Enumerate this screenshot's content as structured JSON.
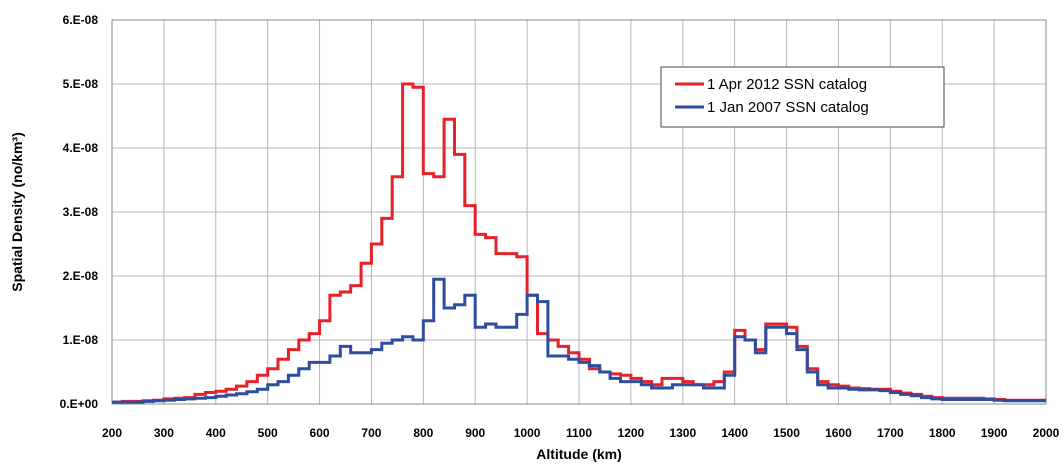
{
  "chart_data": {
    "type": "line",
    "xlabel": "Altitude (km)",
    "ylabel": "Spatial Density (no/km³)",
    "xlim": [
      200,
      2000
    ],
    "ylim": [
      0,
      6e-08
    ],
    "x_ticks": [
      "200",
      "300",
      "400",
      "500",
      "600",
      "700",
      "800",
      "900",
      "1000",
      "1100",
      "1200",
      "1300",
      "1400",
      "1500",
      "1600",
      "1700",
      "1800",
      "1900",
      "2000"
    ],
    "x_tick_values": [
      200,
      300,
      400,
      500,
      600,
      700,
      800,
      900,
      1000,
      1100,
      1200,
      1300,
      1400,
      1500,
      1600,
      1700,
      1800,
      1900,
      2000
    ],
    "y_ticks": [
      "0.E+00",
      "1.E-08",
      "2.E-08",
      "3.E-08",
      "4.E-08",
      "5.E-08",
      "6.E-08"
    ],
    "y_tick_values": [
      0,
      1e-08,
      2e-08,
      3e-08,
      4e-08,
      5e-08,
      6e-08
    ],
    "grid": true,
    "legend_position": "top-right",
    "step_edges": [
      200,
      220,
      240,
      260,
      280,
      300,
      320,
      340,
      360,
      380,
      400,
      420,
      440,
      460,
      480,
      500,
      520,
      540,
      560,
      580,
      600,
      620,
      640,
      660,
      680,
      700,
      720,
      740,
      760,
      780,
      800,
      820,
      840,
      860,
      880,
      900,
      920,
      940,
      960,
      980,
      1000,
      1020,
      1040,
      1060,
      1080,
      1100,
      1120,
      1140,
      1160,
      1180,
      1200,
      1220,
      1240,
      1260,
      1280,
      1300,
      1320,
      1340,
      1360,
      1380,
      1400,
      1420,
      1440,
      1460,
      1480,
      1500,
      1520,
      1540,
      1560,
      1580,
      1600,
      1620,
      1640,
      1660,
      1680,
      1700,
      1720,
      1740,
      1760,
      1780,
      1800,
      1820,
      1840,
      1860,
      1880,
      1900,
      1920,
      1940,
      1960,
      1980,
      2000
    ],
    "series": [
      {
        "name": "1 Apr 2012 SSN catalog",
        "color": "#e8202a",
        "values": [
          3e-10,
          4e-10,
          4e-10,
          5e-10,
          6e-10,
          8e-10,
          9e-10,
          1e-09,
          1.5e-09,
          1.8e-09,
          2e-09,
          2.3e-09,
          2.8e-09,
          3.5e-09,
          4.5e-09,
          5.5e-09,
          7e-09,
          8.5e-09,
          1e-08,
          1.1e-08,
          1.3e-08,
          1.7e-08,
          1.75e-08,
          1.85e-08,
          2.2e-08,
          2.5e-08,
          2.9e-08,
          3.55e-08,
          5e-08,
          4.95e-08,
          3.6e-08,
          3.55e-08,
          4.45e-08,
          3.9e-08,
          3.1e-08,
          2.65e-08,
          2.6e-08,
          2.35e-08,
          2.35e-08,
          2.3e-08,
          1.7e-08,
          1.1e-08,
          1e-08,
          9e-09,
          8e-09,
          7e-09,
          5.5e-09,
          5e-09,
          4.7e-09,
          4.5e-09,
          4e-09,
          3.5e-09,
          3e-09,
          4e-09,
          4e-09,
          3.5e-09,
          3e-09,
          3e-09,
          3.5e-09,
          5e-09,
          1.15e-08,
          1e-08,
          8.5e-09,
          1.25e-08,
          1.25e-08,
          1.2e-08,
          9e-09,
          5.5e-09,
          3.5e-09,
          3e-09,
          2.8e-09,
          2.5e-09,
          2.4e-09,
          2.3e-09,
          2.3e-09,
          2e-09,
          1.7e-09,
          1.5e-09,
          1.2e-09,
          1e-09,
          9e-10,
          9e-10,
          9e-10,
          9e-10,
          8e-10,
          7e-10,
          6e-10,
          6e-10,
          6e-10,
          6e-10
        ]
      },
      {
        "name": "1 Jan 2007 SSN catalog",
        "color": "#2e4d9e",
        "values": [
          3e-10,
          3e-10,
          3e-10,
          4e-10,
          5e-10,
          6e-10,
          7e-10,
          8e-10,
          9e-10,
          1e-09,
          1.2e-09,
          1.4e-09,
          1.6e-09,
          1.9e-09,
          2.3e-09,
          3e-09,
          3.5e-09,
          4.5e-09,
          5.5e-09,
          6.5e-09,
          6.5e-09,
          7.5e-09,
          9e-09,
          8e-09,
          8e-09,
          8.5e-09,
          9.5e-09,
          1e-08,
          1.05e-08,
          1e-08,
          1.3e-08,
          1.95e-08,
          1.5e-08,
          1.55e-08,
          1.7e-08,
          1.2e-08,
          1.25e-08,
          1.2e-08,
          1.2e-08,
          1.4e-08,
          1.7e-08,
          1.6e-08,
          7.5e-09,
          7.5e-09,
          7e-09,
          6.5e-09,
          6e-09,
          5e-09,
          4e-09,
          3.5e-09,
          3.5e-09,
          3e-09,
          2.5e-09,
          2.5e-09,
          3e-09,
          3e-09,
          3e-09,
          2.5e-09,
          2.5e-09,
          4.5e-09,
          1.05e-08,
          1e-08,
          8e-09,
          1.2e-08,
          1.2e-08,
          1.1e-08,
          8.5e-09,
          5e-09,
          3e-09,
          2.5e-09,
          2.5e-09,
          2.3e-09,
          2.2e-09,
          2.2e-09,
          2.1e-09,
          1.8e-09,
          1.5e-09,
          1.3e-09,
          1e-09,
          8e-10,
          7e-10,
          7e-10,
          7e-10,
          7e-10,
          7e-10,
          6e-10,
          5e-10,
          5e-10,
          5e-10,
          5e-10
        ]
      }
    ]
  }
}
